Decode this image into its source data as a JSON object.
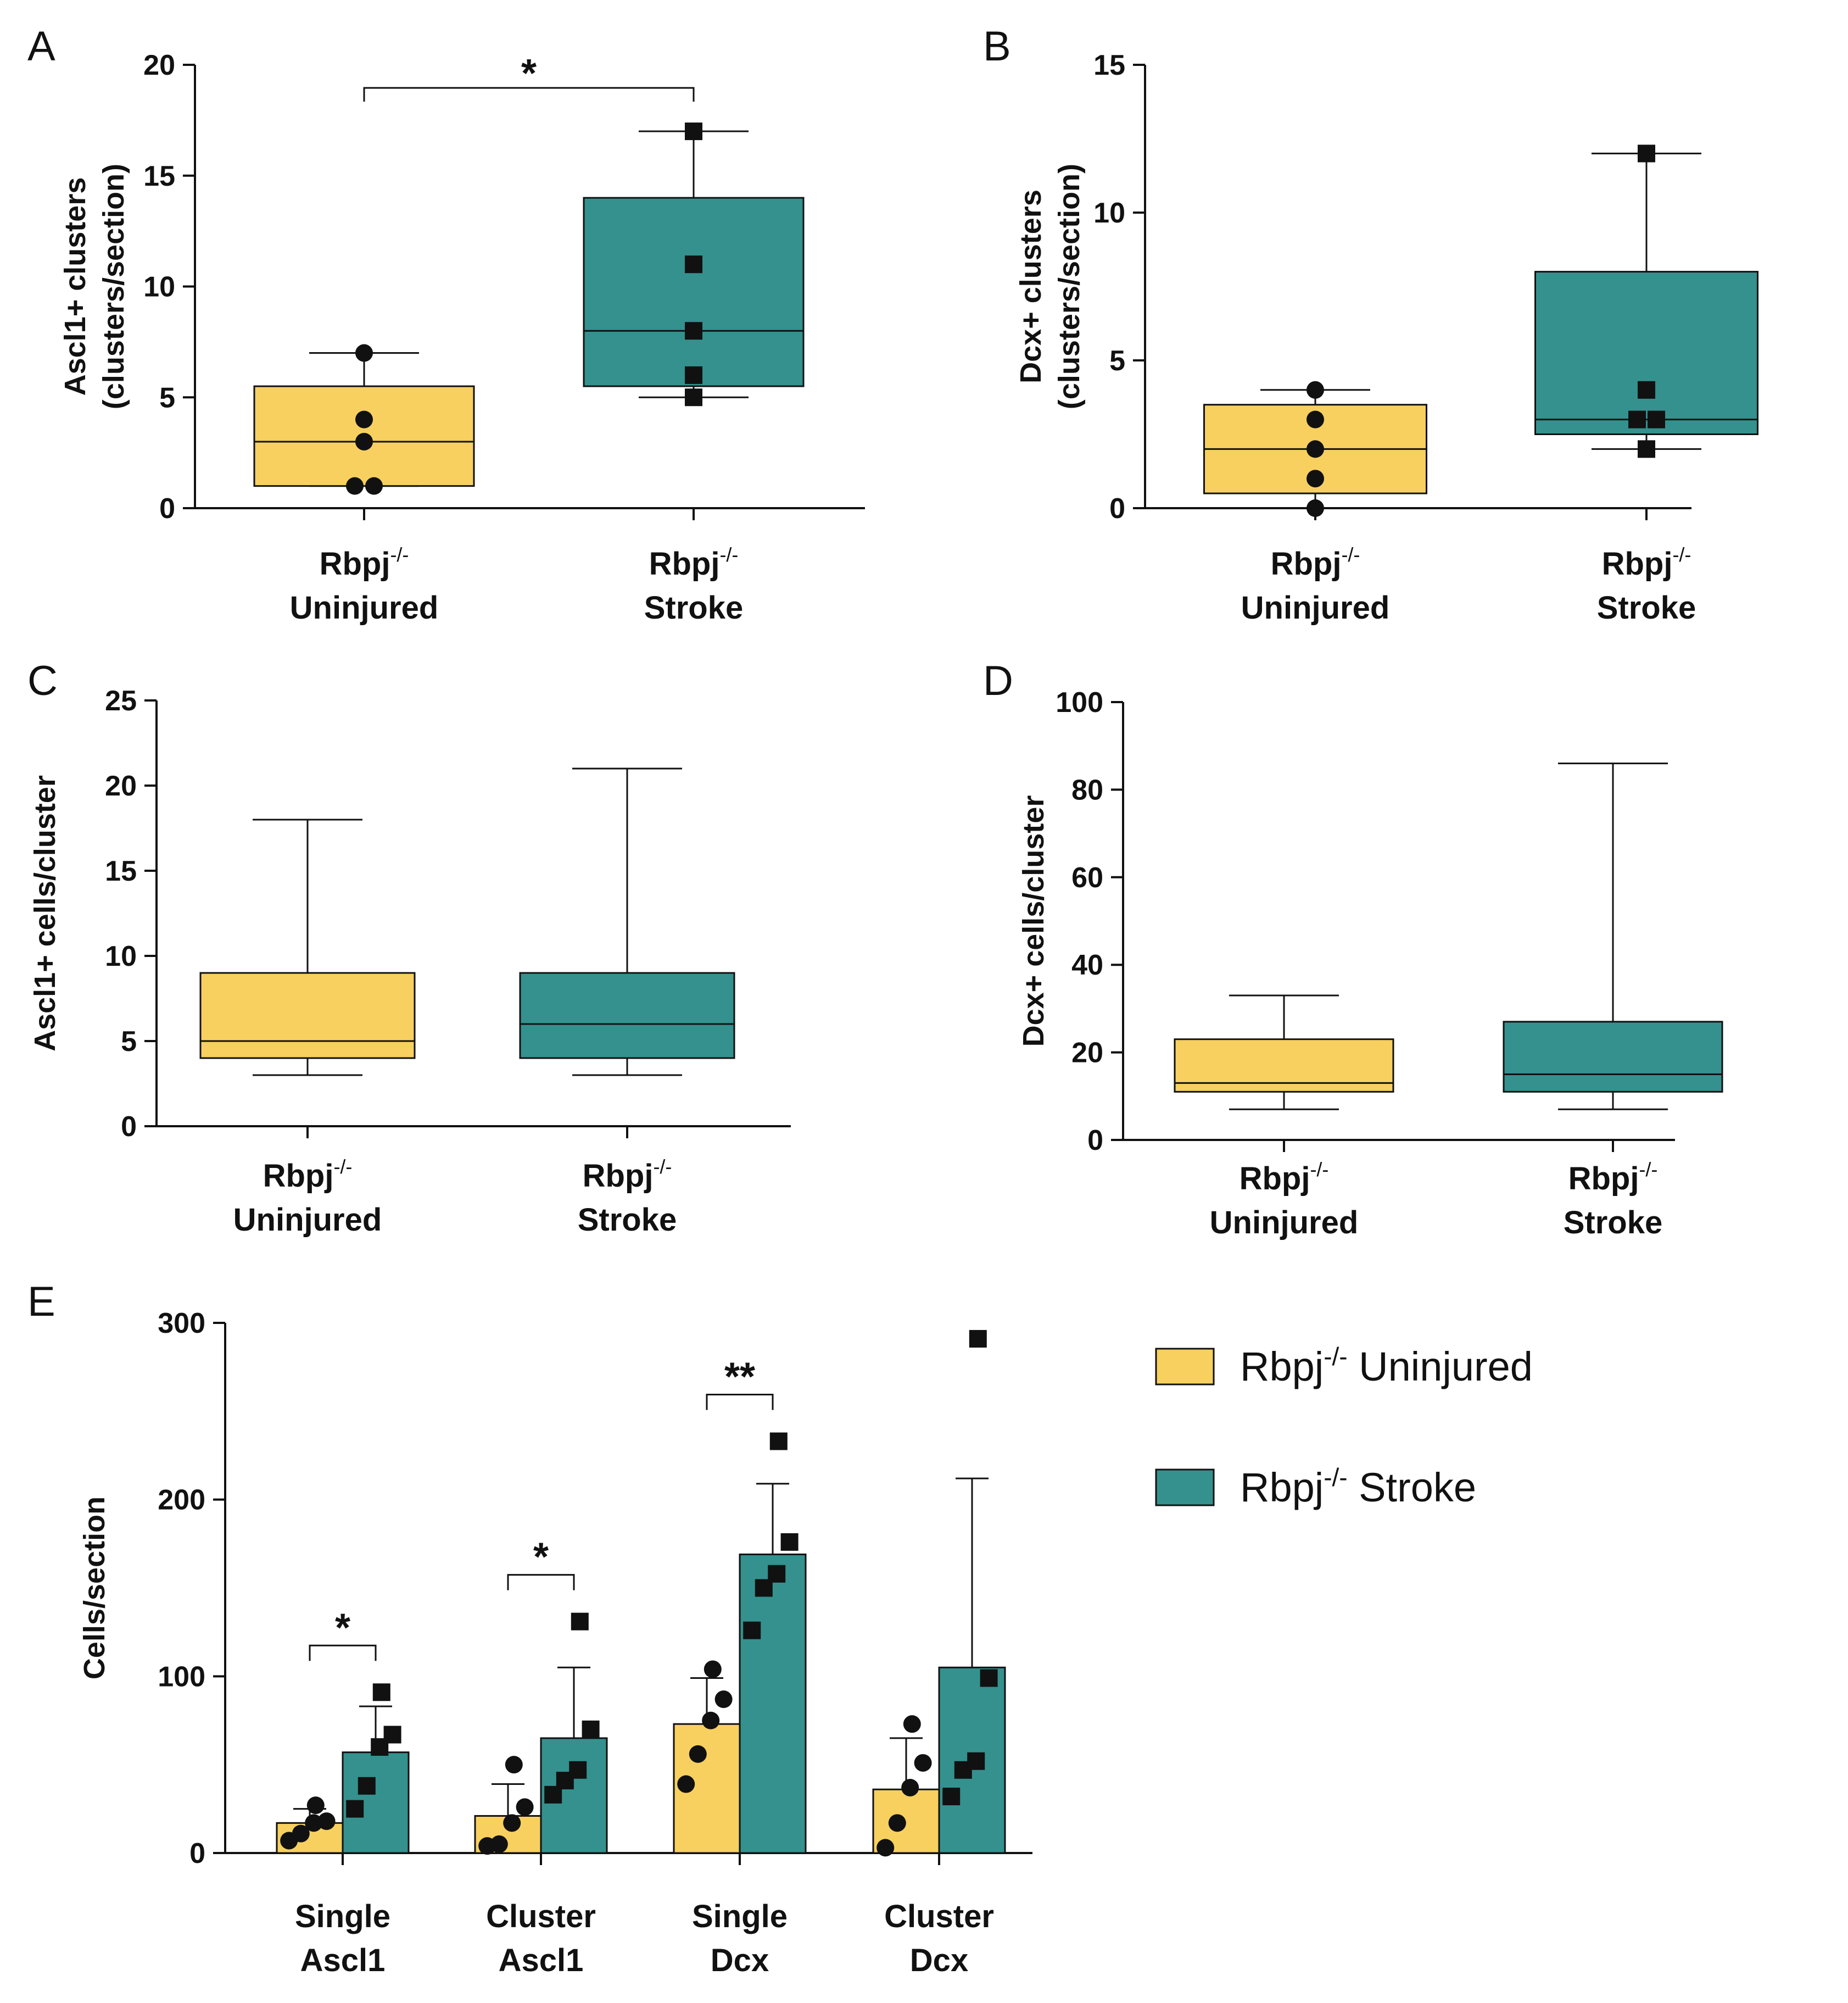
{
  "colors": {
    "uninjured": "#f7d05f",
    "stroke": "#34918e",
    "ink": "#111111"
  },
  "legend": {
    "uninjured_label": "Rbpj",
    "uninjured_sup": "-/-",
    "uninjured_suffix": " Uninjured",
    "stroke_label": "Rbpj",
    "stroke_sup": "-/-",
    "stroke_suffix": " Stroke"
  },
  "chart_data": [
    {
      "panel": "A",
      "type": "box",
      "ylabel_line1": "Ascl1+ clusters",
      "ylabel_line2": "(clusters/section)",
      "ylim": [
        0,
        20
      ],
      "yticks": [
        0,
        5,
        10,
        15,
        20
      ],
      "groups": [
        {
          "name_line1": "Rbpj",
          "sup": "-/-",
          "name_line2": "Uninjured",
          "color": "uninjured",
          "min": 1,
          "q1": 1,
          "median": 3,
          "q3": 5.5,
          "max": 7,
          "points": [
            1,
            1,
            3,
            4,
            7
          ],
          "marker": "circle"
        },
        {
          "name_line1": "Rbpj",
          "sup": "-/-",
          "name_line2": "Stroke",
          "color": "stroke",
          "min": 5,
          "q1": 5.5,
          "median": 8,
          "q3": 14,
          "max": 17,
          "points": [
            5,
            6,
            8,
            11,
            17
          ],
          "marker": "square"
        }
      ],
      "significance": [
        {
          "from": 0,
          "to": 1,
          "label": "*"
        }
      ]
    },
    {
      "panel": "B",
      "type": "box",
      "ylabel_line1": "Dcx+ clusters",
      "ylabel_line2": "(clusters/section)",
      "ylim": [
        0,
        15
      ],
      "yticks": [
        0,
        5,
        10,
        15
      ],
      "groups": [
        {
          "name_line1": "Rbpj",
          "sup": "-/-",
          "name_line2": "Uninjured",
          "color": "uninjured",
          "min": 0,
          "q1": 0.5,
          "median": 2,
          "q3": 3.5,
          "max": 4,
          "points": [
            0,
            1,
            2,
            3,
            4
          ],
          "marker": "circle"
        },
        {
          "name_line1": "Rbpj",
          "sup": "-/-",
          "name_line2": "Stroke",
          "color": "stroke",
          "min": 2,
          "q1": 2.5,
          "median": 3,
          "q3": 8,
          "max": 12,
          "points": [
            2,
            3,
            3,
            4,
            12
          ],
          "marker": "square"
        }
      ],
      "significance": []
    },
    {
      "panel": "C",
      "type": "box",
      "ylabel_line1": "Ascl1+ cells/cluster",
      "ylabel_line2": "",
      "ylim": [
        0,
        25
      ],
      "yticks": [
        0,
        5,
        10,
        15,
        20,
        25
      ],
      "groups": [
        {
          "name_line1": "Rbpj",
          "sup": "-/-",
          "name_line2": "Uninjured",
          "color": "uninjured",
          "min": 3,
          "q1": 4,
          "median": 5,
          "q3": 9,
          "max": 18,
          "points": [],
          "marker": "none"
        },
        {
          "name_line1": "Rbpj",
          "sup": "-/-",
          "name_line2": "Stroke",
          "color": "stroke",
          "min": 3,
          "q1": 4,
          "median": 6,
          "q3": 9,
          "max": 21,
          "points": [],
          "marker": "none"
        }
      ],
      "significance": []
    },
    {
      "panel": "D",
      "type": "box",
      "ylabel_line1": "Dcx+ cells/cluster",
      "ylabel_line2": "",
      "ylim": [
        0,
        100
      ],
      "yticks": [
        0,
        20,
        40,
        60,
        80,
        100
      ],
      "groups": [
        {
          "name_line1": "Rbpj",
          "sup": "-/-",
          "name_line2": "Uninjured",
          "color": "uninjured",
          "min": 7,
          "q1": 11,
          "median": 13,
          "q3": 23,
          "max": 33,
          "points": [],
          "marker": "none"
        },
        {
          "name_line1": "Rbpj",
          "sup": "-/-",
          "name_line2": "Stroke",
          "color": "stroke",
          "min": 7,
          "q1": 11,
          "median": 15,
          "q3": 27,
          "max": 86,
          "points": [],
          "marker": "none"
        }
      ],
      "significance": []
    },
    {
      "panel": "E",
      "type": "bar",
      "ylabel_line1": "Cells/section",
      "ylabel_line2": "",
      "ylim": [
        0,
        300
      ],
      "yticks": [
        0,
        100,
        200,
        300
      ],
      "categories": [
        {
          "line1": "Single",
          "line2": "Ascl1"
        },
        {
          "line1": "Cluster",
          "line2": "Ascl1"
        },
        {
          "line1": "Single",
          "line2": "Dcx"
        },
        {
          "line1": "Cluster",
          "line2": "Dcx"
        }
      ],
      "series": [
        {
          "name": "Rbpj-/- Uninjured",
          "color": "uninjured",
          "marker": "circle",
          "values": [
            17,
            21,
            73,
            36
          ],
          "errors": [
            8,
            18,
            26,
            29
          ],
          "points": [
            [
              7,
              11,
              17,
              18,
              27
            ],
            [
              4,
              5,
              17,
              26,
              50
            ],
            [
              39,
              56,
              75,
              87,
              104
            ],
            [
              3,
              17,
              37,
              51,
              73
            ]
          ]
        },
        {
          "name": "Rbpj-/- Stroke",
          "color": "stroke",
          "marker": "square",
          "values": [
            57,
            65,
            169,
            105
          ],
          "errors": [
            26,
            40,
            40,
            107
          ],
          "points": [
            [
              25,
              38,
              60,
              67,
              91
            ],
            [
              33,
              41,
              47,
              70,
              131
            ],
            [
              126,
              150,
              158,
              176,
              233
            ],
            [
              32,
              47,
              52,
              99,
              291
            ]
          ]
        }
      ],
      "significance": [
        {
          "category": 0,
          "label": "*"
        },
        {
          "category": 1,
          "label": "*"
        },
        {
          "category": 2,
          "label": "**"
        }
      ]
    }
  ]
}
